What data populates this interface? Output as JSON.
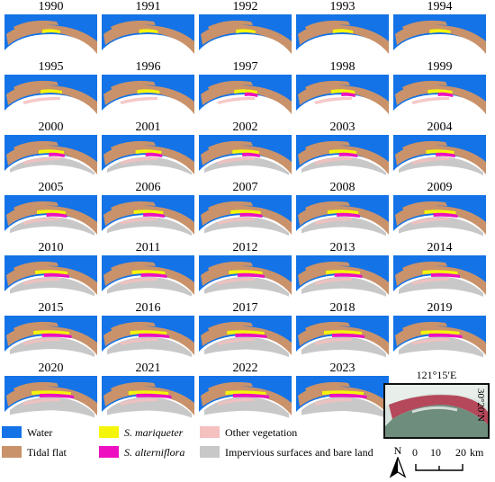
{
  "years": [
    "1990",
    "1991",
    "1992",
    "1993",
    "1994",
    "1995",
    "1996",
    "1997",
    "1998",
    "1999",
    "2000",
    "2001",
    "2002",
    "2003",
    "2004",
    "2005",
    "2006",
    "2007",
    "2008",
    "2009",
    "2010",
    "2011",
    "2012",
    "2013",
    "2014",
    "2015",
    "2016",
    "2017",
    "2018",
    "2019",
    "2020",
    "2021",
    "2022",
    "2023"
  ],
  "legend": [
    {
      "label": "Water",
      "color": "#1473e6",
      "italic": false
    },
    {
      "label": "Tidal flat",
      "color": "#c9926a",
      "italic": false
    },
    {
      "label": "S. mariqueter",
      "color": "#f5f50a",
      "italic": true
    },
    {
      "label": "S. alterniflora",
      "color": "#ee10c0",
      "italic": true
    },
    {
      "label": "Other vegetation",
      "color": "#f4c0c0",
      "italic": false
    },
    {
      "label": "Impervious surfaces and bare land",
      "color": "#c8c8c8",
      "italic": false
    }
  ],
  "inset": {
    "lon_label": "121°15′E",
    "lat_label": "30°20′N"
  },
  "north_label": "N",
  "scale": {
    "ticks": [
      "0",
      "10",
      "20"
    ],
    "unit": "km"
  }
}
